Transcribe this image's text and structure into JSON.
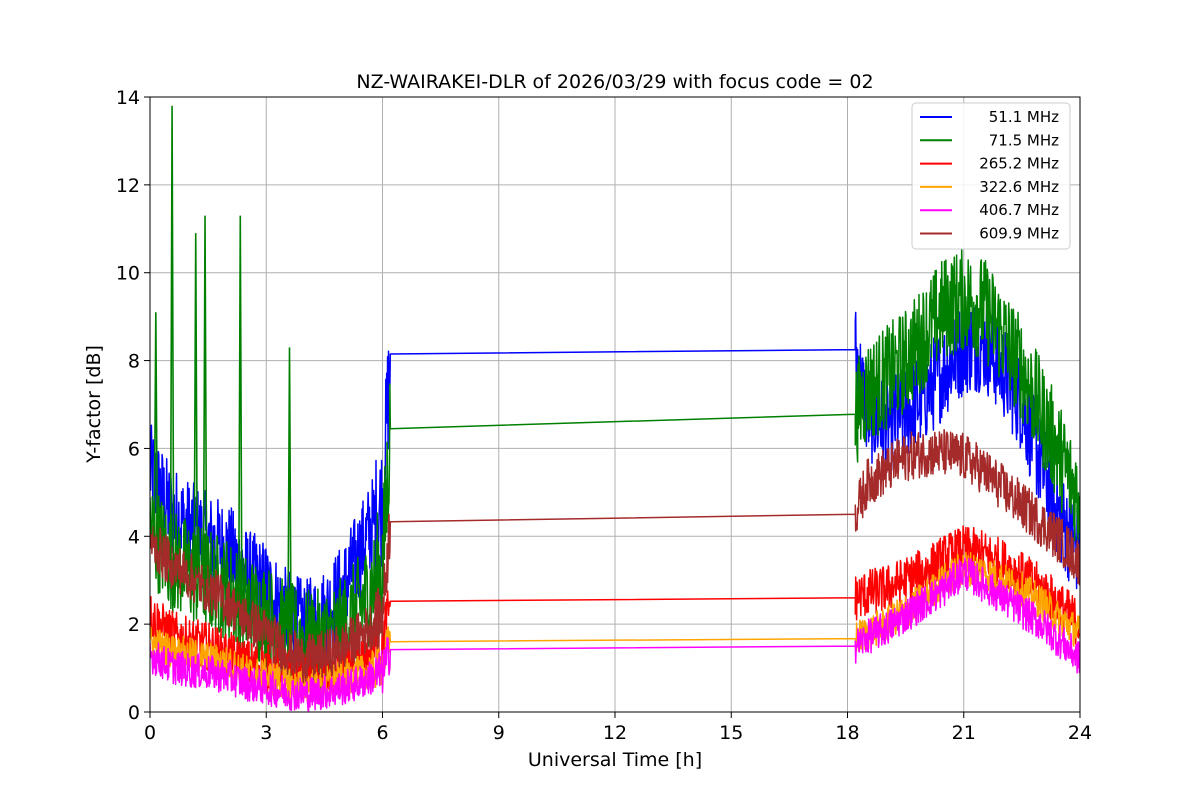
{
  "chart_data": {
    "type": "line",
    "title": "NZ-WAIRAKEI-DLR of 2026/03/29 with focus code = 02",
    "xlabel": "Universal Time [h]",
    "ylabel": "Y-factor [dB]",
    "xlim": [
      0,
      24
    ],
    "ylim": [
      0,
      14
    ],
    "xticks": [
      0,
      3,
      6,
      9,
      12,
      15,
      18,
      21,
      24
    ],
    "yticks": [
      0,
      2,
      4,
      6,
      8,
      10,
      12,
      14
    ],
    "grid": true,
    "legend_position": "top-right",
    "series": [
      {
        "name": "51.1 MHz",
        "color": "#0000ff",
        "points": [
          [
            0,
            5.5
          ],
          [
            0.5,
            4.6
          ],
          [
            1,
            4.2
          ],
          [
            1.5,
            3.9
          ],
          [
            2,
            3.7
          ],
          [
            2.5,
            3.1
          ],
          [
            3,
            2.8
          ],
          [
            3.5,
            2.2
          ],
          [
            4,
            1.9
          ],
          [
            4.5,
            2.2
          ],
          [
            5,
            2.8
          ],
          [
            5.5,
            3.8
          ],
          [
            6,
            4.8
          ],
          [
            6.2,
            8.15
          ],
          [
            18.2,
            8.25
          ],
          [
            18.5,
            6.8
          ],
          [
            19,
            6.5
          ],
          [
            19.5,
            6.8
          ],
          [
            20,
            7.2
          ],
          [
            20.5,
            7.8
          ],
          [
            21,
            8.3
          ],
          [
            21.5,
            8.4
          ],
          [
            22,
            7.8
          ],
          [
            22.5,
            7.0
          ],
          [
            23,
            5.6
          ],
          [
            23.5,
            4.4
          ],
          [
            24,
            3.6
          ]
        ]
      },
      {
        "name": "71.5 MHz",
        "color": "#008000",
        "points": [
          [
            0,
            4.2
          ],
          [
            0.5,
            3.5
          ],
          [
            1,
            3.2
          ],
          [
            1.5,
            3.0
          ],
          [
            2,
            2.8
          ],
          [
            2.5,
            2.4
          ],
          [
            3,
            2.2
          ],
          [
            3.5,
            1.8
          ],
          [
            4,
            1.6
          ],
          [
            4.5,
            1.6
          ],
          [
            5,
            1.9
          ],
          [
            5.5,
            2.5
          ],
          [
            6,
            3.2
          ],
          [
            6.2,
            6.45
          ],
          [
            18.2,
            6.78
          ],
          [
            18.5,
            7.3
          ],
          [
            19,
            7.6
          ],
          [
            19.5,
            8.0
          ],
          [
            20,
            8.6
          ],
          [
            20.5,
            9.2
          ],
          [
            21,
            9.4
          ],
          [
            21.5,
            9.2
          ],
          [
            22,
            8.6
          ],
          [
            22.5,
            7.8
          ],
          [
            23,
            6.8
          ],
          [
            23.5,
            5.8
          ],
          [
            24,
            4.8
          ]
        ]
      },
      {
        "name": "265.2 MHz",
        "color": "#ff0000",
        "points": [
          [
            0,
            2.2
          ],
          [
            0.5,
            1.8
          ],
          [
            1,
            1.6
          ],
          [
            1.5,
            1.5
          ],
          [
            2,
            1.3
          ],
          [
            2.5,
            1.1
          ],
          [
            3,
            1.0
          ],
          [
            3.5,
            0.9
          ],
          [
            4,
            0.8
          ],
          [
            4.5,
            0.85
          ],
          [
            5,
            1.0
          ],
          [
            5.5,
            1.2
          ],
          [
            6,
            1.5
          ],
          [
            6.2,
            2.52
          ],
          [
            18.2,
            2.6
          ],
          [
            18.5,
            2.7
          ],
          [
            19,
            2.8
          ],
          [
            19.5,
            3.0
          ],
          [
            20,
            3.2
          ],
          [
            20.5,
            3.5
          ],
          [
            21,
            3.7
          ],
          [
            21.5,
            3.6
          ],
          [
            22,
            3.4
          ],
          [
            22.5,
            3.1
          ],
          [
            23,
            2.8
          ],
          [
            23.5,
            2.4
          ],
          [
            24,
            2.0
          ]
        ]
      },
      {
        "name": "322.6 MHz",
        "color": "#ffa500",
        "points": [
          [
            0,
            1.6
          ],
          [
            0.5,
            1.4
          ],
          [
            1,
            1.3
          ],
          [
            1.5,
            1.2
          ],
          [
            2,
            1.1
          ],
          [
            2.5,
            0.9
          ],
          [
            3,
            0.8
          ],
          [
            3.5,
            0.7
          ],
          [
            4,
            0.6
          ],
          [
            4.5,
            0.65
          ],
          [
            5,
            0.8
          ],
          [
            5.5,
            0.9
          ],
          [
            6,
            1.1
          ],
          [
            6.2,
            1.6
          ],
          [
            18.2,
            1.67
          ],
          [
            18.5,
            1.8
          ],
          [
            19,
            2.0
          ],
          [
            19.5,
            2.3
          ],
          [
            20,
            2.6
          ],
          [
            20.5,
            3.0
          ],
          [
            21,
            3.3
          ],
          [
            21.5,
            3.2
          ],
          [
            22,
            3.0
          ],
          [
            22.5,
            2.8
          ],
          [
            23,
            2.5
          ],
          [
            23.5,
            2.1
          ],
          [
            24,
            1.8
          ]
        ]
      },
      {
        "name": "406.7 MHz",
        "color": "#ff00ff",
        "points": [
          [
            0,
            1.3
          ],
          [
            0.5,
            1.05
          ],
          [
            1,
            0.95
          ],
          [
            1.5,
            0.9
          ],
          [
            2,
            0.8
          ],
          [
            2.5,
            0.65
          ],
          [
            3,
            0.55
          ],
          [
            3.5,
            0.45
          ],
          [
            4,
            0.4
          ],
          [
            4.5,
            0.45
          ],
          [
            5,
            0.55
          ],
          [
            5.5,
            0.7
          ],
          [
            6,
            0.9
          ],
          [
            6.2,
            1.42
          ],
          [
            18.2,
            1.5
          ],
          [
            18.5,
            1.7
          ],
          [
            19,
            1.9
          ],
          [
            19.5,
            2.2
          ],
          [
            20,
            2.5
          ],
          [
            20.5,
            2.8
          ],
          [
            21,
            3.2
          ],
          [
            21.5,
            2.9
          ],
          [
            22,
            2.6
          ],
          [
            22.5,
            2.3
          ],
          [
            23,
            2.0
          ],
          [
            23.5,
            1.6
          ],
          [
            24,
            1.2
          ]
        ]
      },
      {
        "name": "609.9 MHz",
        "color": "#a52a2a",
        "points": [
          [
            0,
            3.9
          ],
          [
            0.5,
            3.4
          ],
          [
            1,
            3.1
          ],
          [
            1.5,
            2.8
          ],
          [
            2,
            2.5
          ],
          [
            2.5,
            2.1
          ],
          [
            3,
            1.8
          ],
          [
            3.5,
            1.4
          ],
          [
            4,
            1.2
          ],
          [
            4.5,
            1.3
          ],
          [
            5,
            1.5
          ],
          [
            5.5,
            1.8
          ],
          [
            6,
            2.2
          ],
          [
            6.2,
            4.33
          ],
          [
            18.2,
            4.5
          ],
          [
            18.5,
            5.2
          ],
          [
            19,
            5.5
          ],
          [
            19.5,
            5.8
          ],
          [
            20,
            5.9
          ],
          [
            20.5,
            5.9
          ],
          [
            21,
            5.8
          ],
          [
            21.5,
            5.5
          ],
          [
            22,
            5.1
          ],
          [
            22.5,
            4.7
          ],
          [
            23,
            4.3
          ],
          [
            23.5,
            3.9
          ],
          [
            24,
            3.4
          ]
        ]
      }
    ]
  }
}
